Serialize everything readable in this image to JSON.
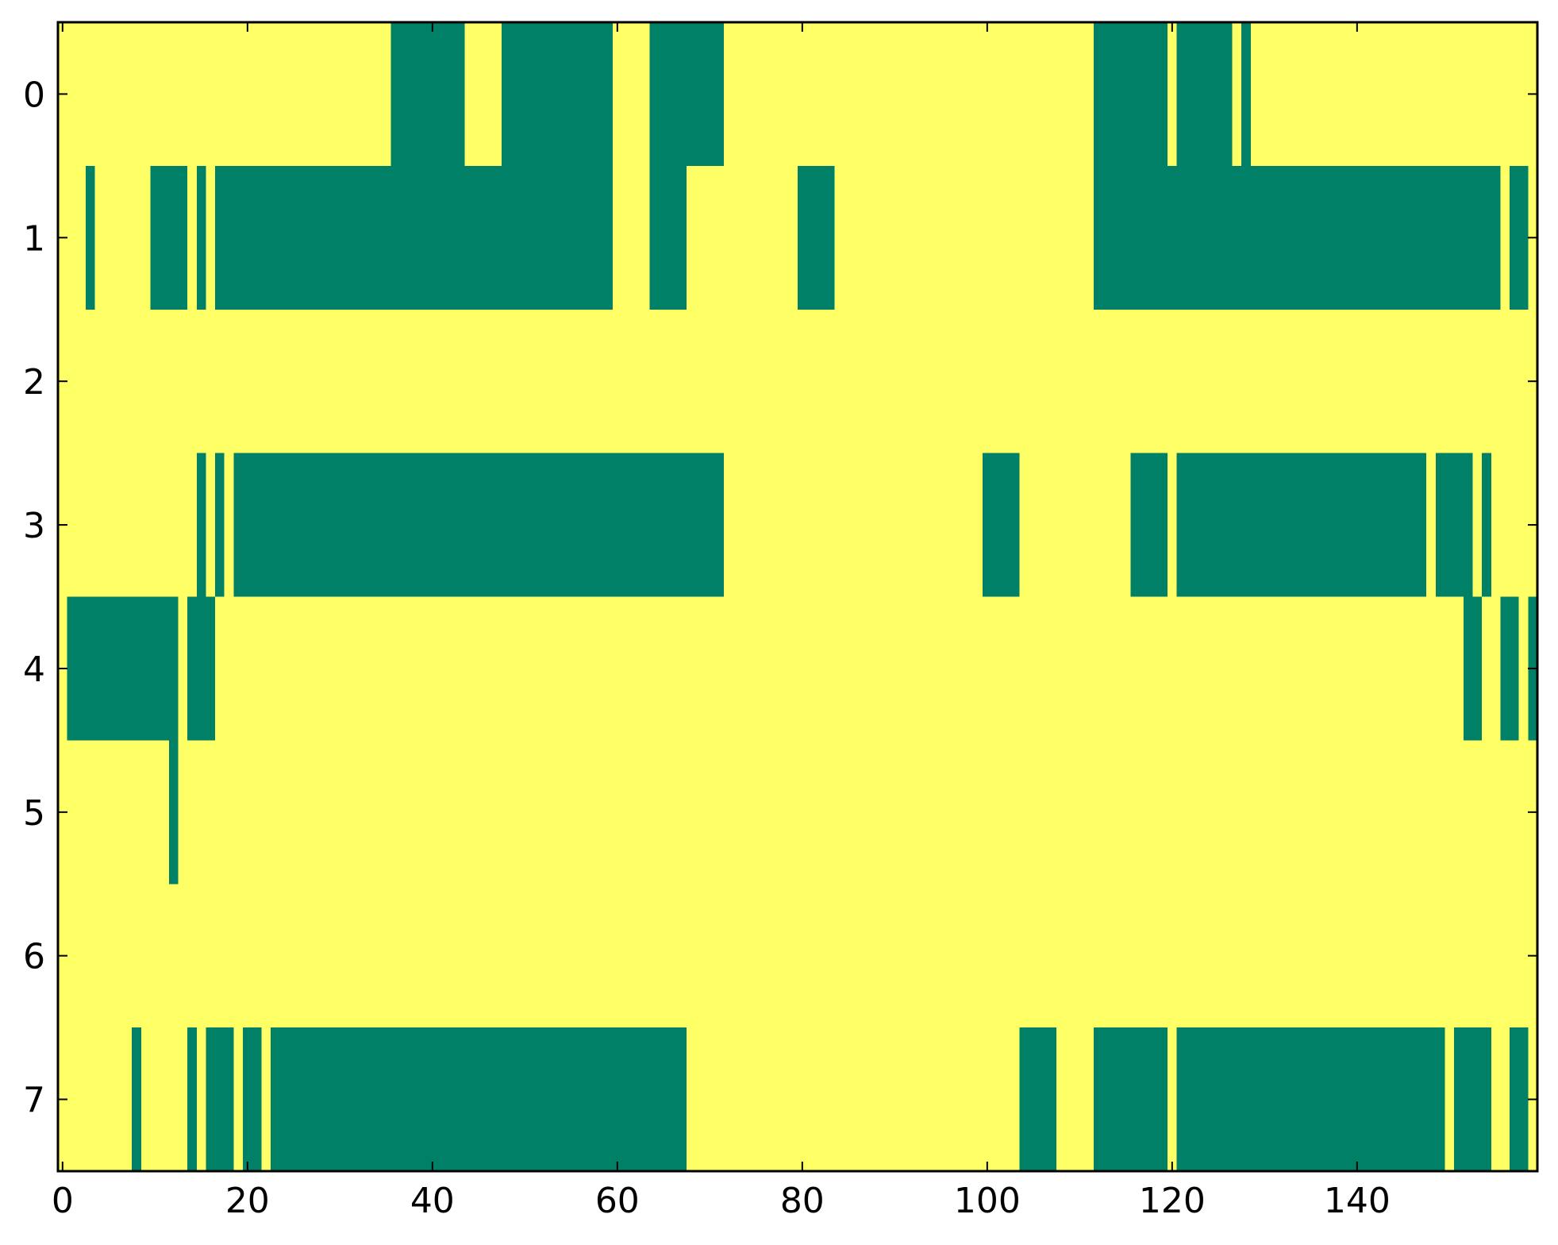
{
  "chart_data": {
    "type": "heatmap",
    "title": "",
    "xlabel": "",
    "ylabel": "",
    "xlim": [
      -0.5,
      159.5
    ],
    "ylim": [
      7.5,
      -0.5
    ],
    "xticks": [
      0,
      20,
      40,
      60,
      80,
      100,
      120,
      140
    ],
    "xtick_labels": [
      "0",
      "20",
      "40",
      "60",
      "80",
      "100",
      "120",
      "140"
    ],
    "yticks": [
      0,
      1,
      2,
      3,
      4,
      5,
      6,
      7
    ],
    "ytick_labels": [
      "0",
      "1",
      "2",
      "3",
      "4",
      "5",
      "6",
      "7"
    ],
    "grid": false,
    "colors": {
      "on": "#008066",
      "off": "#ffff66"
    },
    "rows": [
      {
        "row": 0,
        "on_ranges": [
          [
            36,
            43
          ],
          [
            48,
            59
          ],
          [
            64,
            71
          ],
          [
            112,
            119
          ],
          [
            121,
            126
          ],
          [
            128,
            128
          ]
        ]
      },
      {
        "row": 1,
        "on_ranges": [
          [
            3,
            3
          ],
          [
            10,
            13
          ],
          [
            15,
            15
          ],
          [
            17,
            59
          ],
          [
            64,
            67
          ],
          [
            80,
            83
          ],
          [
            112,
            155
          ],
          [
            157,
            158
          ]
        ]
      },
      {
        "row": 2,
        "on_ranges": []
      },
      {
        "row": 3,
        "on_ranges": [
          [
            15,
            15
          ],
          [
            17,
            17
          ],
          [
            19,
            71
          ],
          [
            100,
            103
          ],
          [
            116,
            119
          ],
          [
            121,
            147
          ],
          [
            149,
            152
          ],
          [
            154,
            154
          ]
        ]
      },
      {
        "row": 4,
        "on_ranges": [
          [
            1,
            12
          ],
          [
            14,
            16
          ],
          [
            152,
            153
          ],
          [
            156,
            157
          ],
          [
            159,
            159
          ]
        ]
      },
      {
        "row": 5,
        "on_ranges": [
          [
            12,
            12
          ]
        ]
      },
      {
        "row": 6,
        "on_ranges": []
      },
      {
        "row": 7,
        "on_ranges": [
          [
            8,
            8
          ],
          [
            14,
            14
          ],
          [
            16,
            18
          ],
          [
            20,
            21
          ],
          [
            23,
            67
          ],
          [
            104,
            107
          ],
          [
            112,
            119
          ],
          [
            121,
            149
          ],
          [
            151,
            154
          ],
          [
            157,
            158
          ]
        ]
      }
    ]
  }
}
